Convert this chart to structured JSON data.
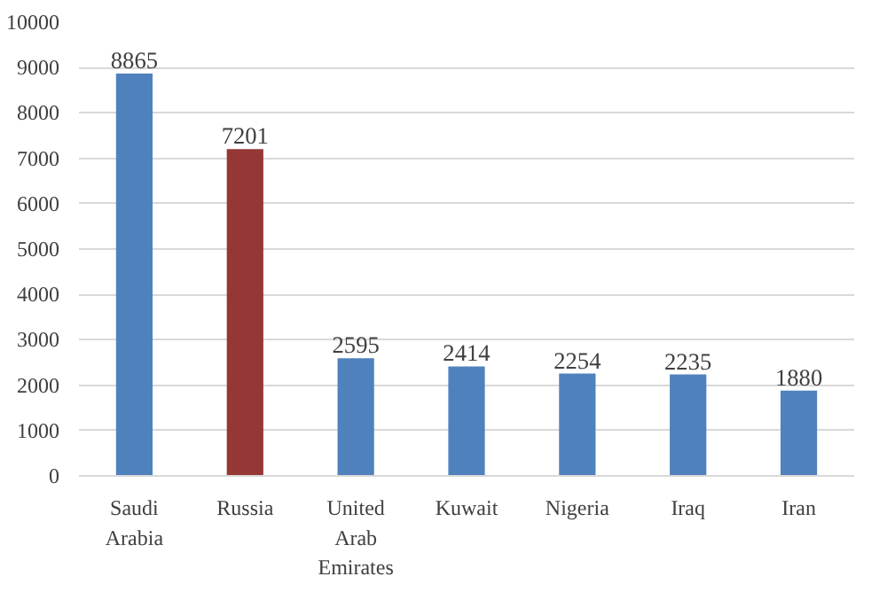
{
  "chart_data": {
    "type": "bar",
    "categories": [
      "Saudi Arabia",
      "Russia",
      "United Arab Emirates",
      "Kuwait",
      "Nigeria",
      "Iraq",
      "Iran"
    ],
    "values": [
      8865,
      7201,
      2595,
      2414,
      2254,
      2235,
      1880
    ],
    "colors": [
      "#4f81bd",
      "#953735",
      "#4f81bd",
      "#4f81bd",
      "#4f81bd",
      "#4f81bd",
      "#4f81bd"
    ],
    "ylim": [
      0,
      10000
    ],
    "yticks": [
      0,
      1000,
      2000,
      3000,
      4000,
      5000,
      6000,
      7000,
      8000,
      9000,
      10000
    ],
    "grid": "y",
    "data_labels": true
  }
}
